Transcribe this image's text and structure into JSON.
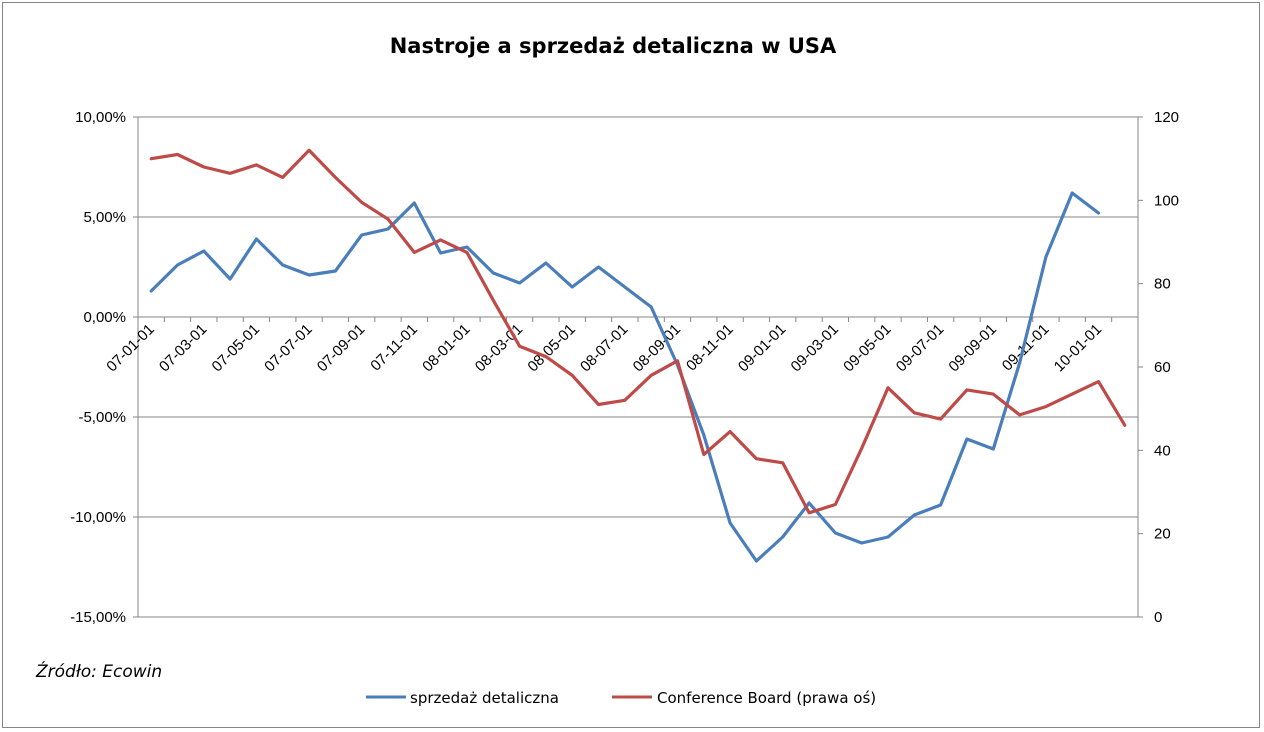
{
  "chart_data": {
    "type": "line",
    "title": "Nastroje a sprzedaż detaliczna w USA",
    "source": "Źródło: Ecowin",
    "colors": {
      "series_left": "#4a7ebb",
      "series_right": "#be4b48",
      "grid": "#868686"
    },
    "grid": true,
    "legend_position": "bottom",
    "x_tick_labels": [
      "07-01-01",
      "07-03-01",
      "07-05-01",
      "07-07-01",
      "07-09-01",
      "07-11-01",
      "08-01-01",
      "08-03-01",
      "08-05-01",
      "08-07-01",
      "08-09-01",
      "08-11-01",
      "09-01-01",
      "09-03-01",
      "09-05-01",
      "09-07-01",
      "09-09-01",
      "09-11-01",
      "10-01-01"
    ],
    "y_left": {
      "lim": [
        -15,
        10
      ],
      "tick_labels": [
        "-15,00%",
        "-10,00%",
        "-5,00%",
        "0,00%",
        "5,00%",
        "10,00%"
      ],
      "ticks": [
        -15,
        -10,
        -5,
        0,
        5,
        10
      ]
    },
    "y_right": {
      "lim": [
        0,
        120
      ],
      "tick_labels": [
        "0",
        "20",
        "40",
        "60",
        "80",
        "100",
        "120"
      ],
      "ticks": [
        0,
        20,
        40,
        60,
        80,
        100,
        120
      ]
    },
    "series": [
      {
        "name": "sprzedaż detaliczna",
        "axis": "left",
        "x": [
          "2007-01",
          "2007-02",
          "2007-03",
          "2007-04",
          "2007-05",
          "2007-06",
          "2007-07",
          "2007-08",
          "2007-09",
          "2007-10",
          "2007-11",
          "2007-12",
          "2008-01",
          "2008-02",
          "2008-03",
          "2008-04",
          "2008-05",
          "2008-06",
          "2008-07",
          "2008-08",
          "2008-09",
          "2008-10",
          "2008-11",
          "2008-12",
          "2009-01",
          "2009-02",
          "2009-03",
          "2009-04",
          "2009-05",
          "2009-06",
          "2009-07",
          "2009-08",
          "2009-09",
          "2009-10",
          "2009-11",
          "2009-12",
          "2010-01",
          "2010-02"
        ],
        "values": [
          1.3,
          2.6,
          3.3,
          1.9,
          3.9,
          2.6,
          2.1,
          2.3,
          4.1,
          4.4,
          5.7,
          3.2,
          3.5,
          2.2,
          1.7,
          2.7,
          1.5,
          2.5,
          1.5,
          0.5,
          -2.4,
          -5.9,
          -10.3,
          -12.2,
          -11.0,
          -9.3,
          -10.8,
          -11.3,
          -11.0,
          -9.9,
          -9.4,
          -6.1,
          -6.6,
          -2.3,
          3.0,
          6.2,
          5.2,
          null
        ]
      },
      {
        "name": "Conference Board (prawa oś)",
        "axis": "right",
        "x": [
          "2007-01",
          "2007-02",
          "2007-03",
          "2007-04",
          "2007-05",
          "2007-06",
          "2007-07",
          "2007-08",
          "2007-09",
          "2007-10",
          "2007-11",
          "2007-12",
          "2008-01",
          "2008-02",
          "2008-03",
          "2008-04",
          "2008-05",
          "2008-06",
          "2008-07",
          "2008-08",
          "2008-09",
          "2008-10",
          "2008-11",
          "2008-12",
          "2009-01",
          "2009-02",
          "2009-03",
          "2009-04",
          "2009-05",
          "2009-06",
          "2009-07",
          "2009-08",
          "2009-09",
          "2009-10",
          "2009-11",
          "2009-12",
          "2010-01",
          "2010-02"
        ],
        "values": [
          110,
          111,
          108,
          106.5,
          108.5,
          105.5,
          112,
          105.5,
          99.5,
          95.5,
          87.5,
          90.5,
          87.5,
          76,
          65,
          62.5,
          58,
          51,
          52,
          58,
          61.5,
          39,
          44.5,
          38,
          37,
          25,
          27,
          40.5,
          55,
          49,
          47.5,
          54.5,
          53.5,
          48.5,
          50.5,
          53.5,
          56.5,
          46
        ]
      }
    ]
  }
}
